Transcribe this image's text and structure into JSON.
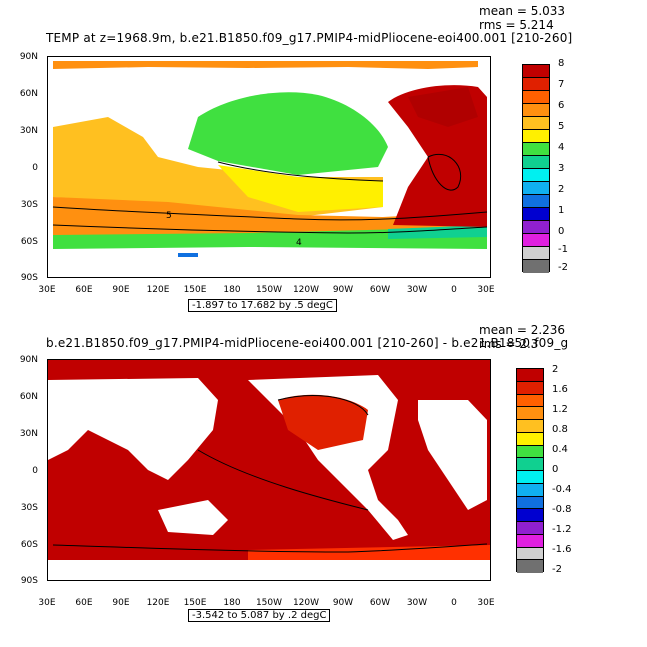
{
  "panels": [
    {
      "title": "TEMP at z=1968.9m, b.e21.B1850.f09_g17.PMIP4-midPliocene-eoi400.001 [210-260]",
      "mean_text": "mean = 5.033",
      "rms_text": "rms = 5.214",
      "range_text": "-1.897 to 17.682 by .5 degC",
      "lat_labels": [
        "90N",
        "60N",
        "30N",
        "0",
        "30S",
        "60S",
        "90S"
      ],
      "lon_labels": [
        "30E",
        "60E",
        "90E",
        "120E",
        "150E",
        "180",
        "150W",
        "120W",
        "90W",
        "60W",
        "30W",
        "0",
        "30E"
      ],
      "colorbar_labels": [
        "8",
        "7",
        "6",
        "5",
        "4",
        "3",
        "2",
        "1",
        "0",
        "-1",
        "-2"
      ],
      "colorbar_colors": [
        "#c00000",
        "#e02000",
        "#ff6000",
        "#ff9010",
        "#ffc020",
        "#fff000",
        "#40e040",
        "#10d090",
        "#00f0f0",
        "#10b0f0",
        "#1070e0",
        "#0000d0",
        "#9020d0",
        "#e020e0",
        "#d0d0d0",
        "#707070"
      ],
      "contour_labels": [
        "5",
        "4"
      ]
    },
    {
      "title": "b.e21.B1850.f09_g17.PMIP4-midPliocene-eoi400.001 [210-260] - b.e21.B1850.f09_g",
      "mean_text": "mean = 2.236",
      "rms_text": "rms = 2.3",
      "range_text": "-3.542 to 5.087 by .2 degC",
      "lat_labels": [
        "90N",
        "60N",
        "30N",
        "0",
        "30S",
        "60S",
        "90S"
      ],
      "lon_labels": [
        "30E",
        "60E",
        "90E",
        "120E",
        "150E",
        "180",
        "150W",
        "120W",
        "90W",
        "60W",
        "30W",
        "0",
        "30E"
      ],
      "colorbar_labels": [
        "2",
        "1.6",
        "1.2",
        "0.8",
        "0.4",
        "0",
        "-0.4",
        "-0.8",
        "-1.2",
        "-1.6",
        "-2"
      ],
      "colorbar_colors": [
        "#c00000",
        "#e02000",
        "#ff6000",
        "#ff9010",
        "#ffc020",
        "#fff000",
        "#40e040",
        "#10d090",
        "#00f0f0",
        "#10b0f0",
        "#1070e0",
        "#0000d0",
        "#9020d0",
        "#e020e0",
        "#d0d0d0",
        "#707070"
      ],
      "contour_labels": []
    }
  ]
}
